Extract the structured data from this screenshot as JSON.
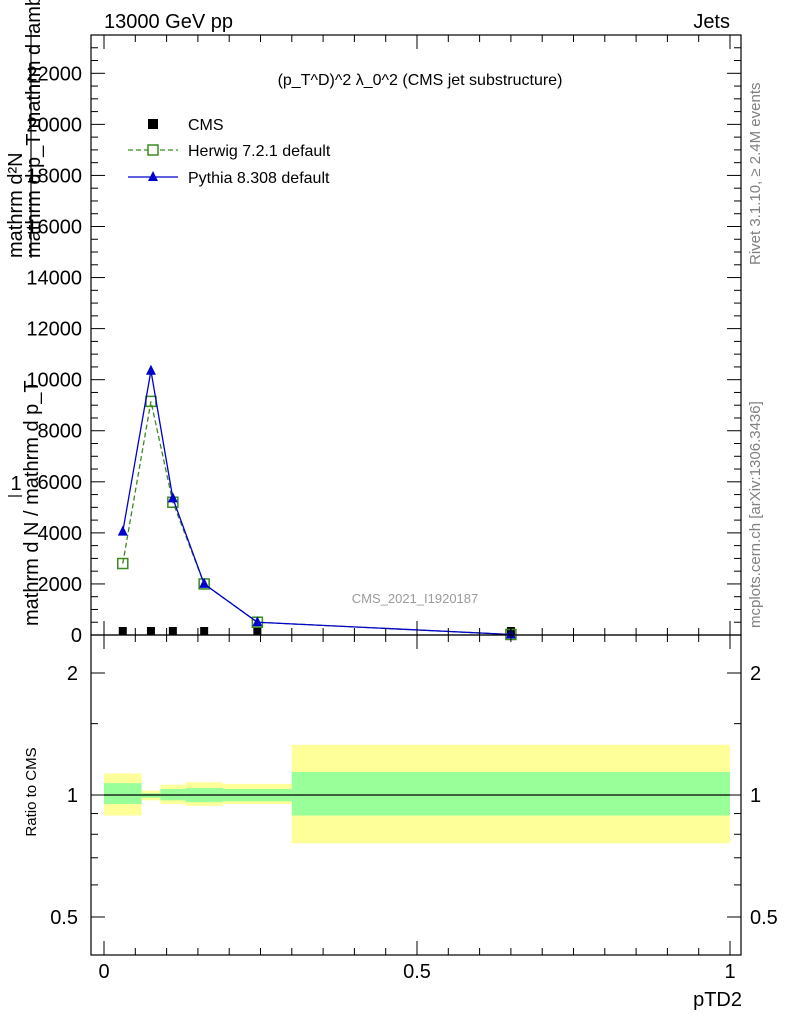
{
  "header": {
    "left": "13000 GeV pp",
    "right": "Jets"
  },
  "side_labels": {
    "rivet": "Rivet 3.1.10, ≥ 2.4M events",
    "mcplots": "mcplots.cern.ch [arXiv:1306.3436]"
  },
  "watermark": "CMS_2021_I1920187",
  "chart_data": [
    {
      "type": "line",
      "title": "(p_T^D)^2 λ_0^2 (CMS jet substructure)",
      "ylabel": {
        "numerator": "mathrm d²N",
        "denominator": "mathrm d p_T mathrm d lambda",
        "prefix_numerator": "1",
        "prefix_denominator": "mathrm d N / mathrm d p_T"
      },
      "ylim": [
        0,
        23500
      ],
      "xlim": [
        0,
        1
      ],
      "yticks": [
        0,
        2000,
        4000,
        6000,
        8000,
        10000,
        12000,
        14000,
        16000,
        18000,
        20000,
        22000
      ],
      "legend_position": "top-left",
      "series": [
        {
          "name": "CMS",
          "marker": "square-filled",
          "color": "#000000",
          "x": [
            0.03,
            0.075,
            0.11,
            0.16,
            0.245,
            0.65
          ],
          "y": [
            0,
            0,
            0,
            0,
            0,
            0
          ]
        },
        {
          "name": "Herwig 7.2.1 default",
          "marker": "square-open",
          "line": "dashed",
          "color": "#3a8a1e",
          "x": [
            0.03,
            0.075,
            0.11,
            0.16,
            0.245,
            0.65
          ],
          "y": [
            2800,
            9150,
            5200,
            2000,
            500,
            20
          ]
        },
        {
          "name": "Pythia 8.308 default",
          "marker": "triangle-filled",
          "line": "solid",
          "color": "#0000cc",
          "x": [
            0.03,
            0.075,
            0.11,
            0.16,
            0.245,
            0.65
          ],
          "y": [
            4050,
            10350,
            5350,
            2000,
            500,
            20
          ]
        }
      ]
    },
    {
      "type": "area",
      "ylabel": "Ratio to CMS",
      "xlabel": "pTD2",
      "xlim": [
        0,
        1
      ],
      "ylim": [
        0.35,
        2.25
      ],
      "yticks": [
        0.5,
        1,
        2
      ],
      "xticks": [
        0,
        0.5,
        1
      ],
      "reference_line": 1,
      "bins": [
        {
          "x_low": 0.0,
          "x_high": 0.06,
          "stat_low": 0.95,
          "stat_high": 1.07,
          "total_low": 0.89,
          "total_high": 1.13
        },
        {
          "x_low": 0.06,
          "x_high": 0.09,
          "stat_low": 0.985,
          "stat_high": 1.01,
          "total_low": 0.97,
          "total_high": 1.025
        },
        {
          "x_low": 0.09,
          "x_high": 0.13,
          "stat_low": 0.97,
          "stat_high": 1.035,
          "total_low": 0.95,
          "total_high": 1.06
        },
        {
          "x_low": 0.13,
          "x_high": 0.19,
          "stat_low": 0.96,
          "stat_high": 1.04,
          "total_low": 0.94,
          "total_high": 1.075
        },
        {
          "x_low": 0.19,
          "x_high": 0.3,
          "stat_low": 0.965,
          "stat_high": 1.035,
          "total_low": 0.95,
          "total_high": 1.065
        },
        {
          "x_low": 0.3,
          "x_high": 1.0,
          "stat_low": 0.89,
          "stat_high": 1.14,
          "total_low": 0.76,
          "total_high": 1.33
        }
      ],
      "colors": {
        "stat": "#99ff99",
        "total": "#ffff99"
      }
    }
  ]
}
